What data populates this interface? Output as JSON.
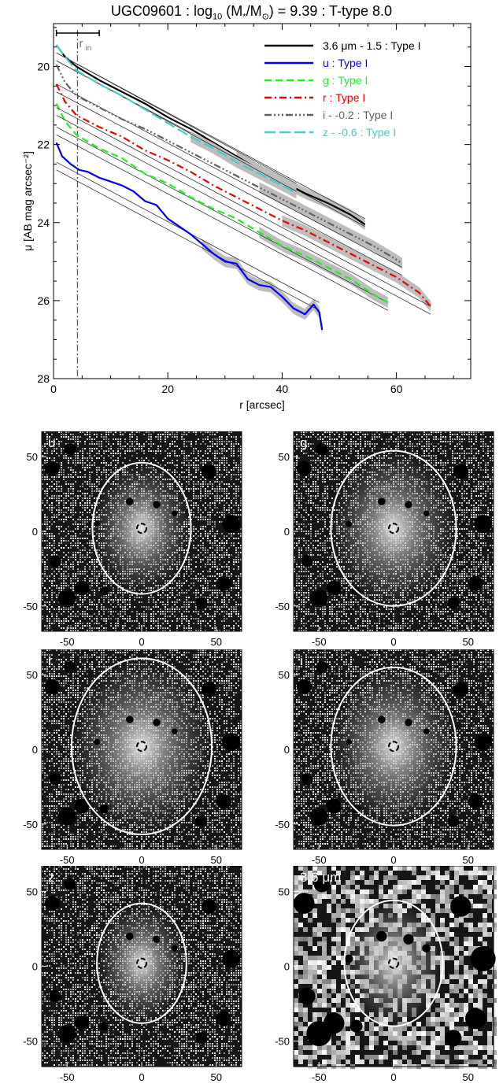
{
  "title": {
    "galaxy": "UGC09601",
    "mass_label": "log",
    "mass_sub": "10",
    "mass_expr_a": "(M",
    "mass_star": "*",
    "mass_expr_b": "/M",
    "mass_sun": "⊙",
    "mass_value": ") = 9.39 : T-type 8.0"
  },
  "chart_data": [
    {
      "type": "line",
      "title": "UGC09601 : log10 (M*/M⊙) = 9.39 : T-type 8.0",
      "xlabel": "r [arcsec]",
      "ylabel": "μ [AB mag arcsec⁻²]",
      "xlim": [
        0,
        73
      ],
      "ylim": [
        28,
        18.9
      ],
      "y_inverted": true,
      "xticks": [
        0,
        20,
        40,
        60
      ],
      "yticks": [
        20,
        22,
        24,
        26,
        28
      ],
      "r_in": 4.2,
      "r_in_label": "r",
      "r_in_sub": "in",
      "r_in_bar": [
        0.5,
        8
      ],
      "legend_position": "top-right",
      "series": [
        {
          "name": "3.6 μm - 1.5 : Type I",
          "color": "#000000",
          "dash": "",
          "x": [
            0.5,
            2,
            4,
            8,
            12,
            16,
            20,
            24,
            28,
            32,
            36,
            40,
            44,
            48,
            52,
            54.5
          ],
          "y": [
            19.45,
            19.75,
            20.0,
            20.35,
            20.65,
            20.95,
            21.3,
            21.6,
            21.95,
            22.3,
            22.65,
            22.95,
            23.25,
            23.5,
            23.8,
            24.05
          ],
          "fit": [
            [
              0.5,
              19.75
            ],
            [
              54.5,
              24.0
            ]
          ]
        },
        {
          "name": "u : Type I",
          "color": "#0000ee",
          "dash": "",
          "x": [
            0.5,
            1.5,
            3,
            4.5,
            6,
            8,
            10,
            12,
            14,
            16,
            18,
            20,
            22,
            24,
            26,
            28,
            30,
            32,
            34,
            36,
            38,
            40,
            42,
            44,
            45.5,
            46.5,
            47
          ],
          "y": [
            21.95,
            22.3,
            22.5,
            22.65,
            22.7,
            22.85,
            22.95,
            23.05,
            23.2,
            23.45,
            23.55,
            23.9,
            24.1,
            24.3,
            24.55,
            24.8,
            25.0,
            25.05,
            25.45,
            25.6,
            25.65,
            25.9,
            26.2,
            26.35,
            26.1,
            26.3,
            26.75
          ],
          "fit": [
            [
              0.5,
              22.55
            ],
            [
              46.5,
              26.15
            ]
          ]
        },
        {
          "name": "g : Type I",
          "color": "#22ee22",
          "dash": "9,5",
          "x": [
            0.5,
            2,
            4,
            8,
            12,
            16,
            20,
            24,
            28,
            32,
            36,
            40,
            44,
            48,
            52,
            56,
            58.5
          ],
          "y": [
            20.95,
            21.4,
            21.75,
            22.1,
            22.35,
            22.75,
            23.0,
            23.35,
            23.65,
            23.9,
            24.25,
            24.6,
            24.85,
            25.15,
            25.45,
            25.85,
            26.05
          ],
          "fit": [
            [
              0.5,
              21.65
            ],
            [
              58.5,
              26.15
            ]
          ]
        },
        {
          "name": "r : Type I",
          "color": "#ee0000",
          "dash": "9,4,2,4",
          "x": [
            0.5,
            2,
            4,
            8,
            12,
            16,
            20,
            24,
            28,
            32,
            36,
            40,
            44,
            48,
            52,
            56,
            60,
            64,
            66
          ],
          "y": [
            20.45,
            20.9,
            21.25,
            21.55,
            21.8,
            22.15,
            22.4,
            22.7,
            23.05,
            23.35,
            23.65,
            23.95,
            24.2,
            24.5,
            24.8,
            25.1,
            25.4,
            25.8,
            26.15
          ],
          "fit": [
            [
              0.5,
              21.15
            ],
            [
              66,
              26.25
            ]
          ]
        },
        {
          "name": "i - -0.2 : Type I",
          "color": "#606060",
          "dash": "9,3,2,3,2,3,2,3",
          "x": [
            0.5,
            2,
            4,
            8,
            12,
            16,
            20,
            24,
            28,
            32,
            36,
            40,
            44,
            48,
            52,
            56,
            60,
            61
          ],
          "y": [
            19.95,
            20.4,
            20.75,
            21.05,
            21.35,
            21.6,
            21.9,
            22.2,
            22.5,
            22.8,
            23.1,
            23.4,
            23.7,
            24.0,
            24.3,
            24.6,
            24.95,
            25.05
          ],
          "fit": [
            [
              0.5,
              20.55
            ],
            [
              61,
              25.25
            ]
          ]
        },
        {
          "name": "z - -0.6 : Type I",
          "color": "#44cccc",
          "dash": "14,5",
          "x": [
            0.5,
            2,
            4,
            8,
            12,
            16,
            20,
            24,
            28,
            32,
            36,
            40,
            42.5
          ],
          "y": [
            19.45,
            19.75,
            20.1,
            20.45,
            20.75,
            21.1,
            21.45,
            21.8,
            22.1,
            22.45,
            22.75,
            23.05,
            23.25
          ],
          "fit": [
            [
              0.5,
              19.75
            ],
            [
              42.5,
              23.1
            ]
          ]
        }
      ]
    },
    {
      "type": "image_grid",
      "panels": [
        {
          "label": "u",
          "ellipse": [
            0,
            2,
            33,
            44
          ]
        },
        {
          "label": "g",
          "ellipse": [
            0,
            2,
            42,
            52
          ]
        },
        {
          "label": "r",
          "ellipse": [
            0,
            2,
            47,
            59
          ]
        },
        {
          "label": "i",
          "ellipse": [
            0,
            2,
            42,
            53
          ]
        },
        {
          "label": "z",
          "ellipse": [
            0,
            2,
            30,
            40
          ]
        },
        {
          "label": "3.6 μm",
          "ellipse": [
            0,
            2,
            33,
            42
          ]
        }
      ],
      "xlim": [
        -67,
        67
      ],
      "ylim": [
        -67,
        67
      ],
      "xticks": [
        -50,
        0,
        50
      ],
      "yticks": [
        -50,
        0,
        50
      ]
    }
  ]
}
